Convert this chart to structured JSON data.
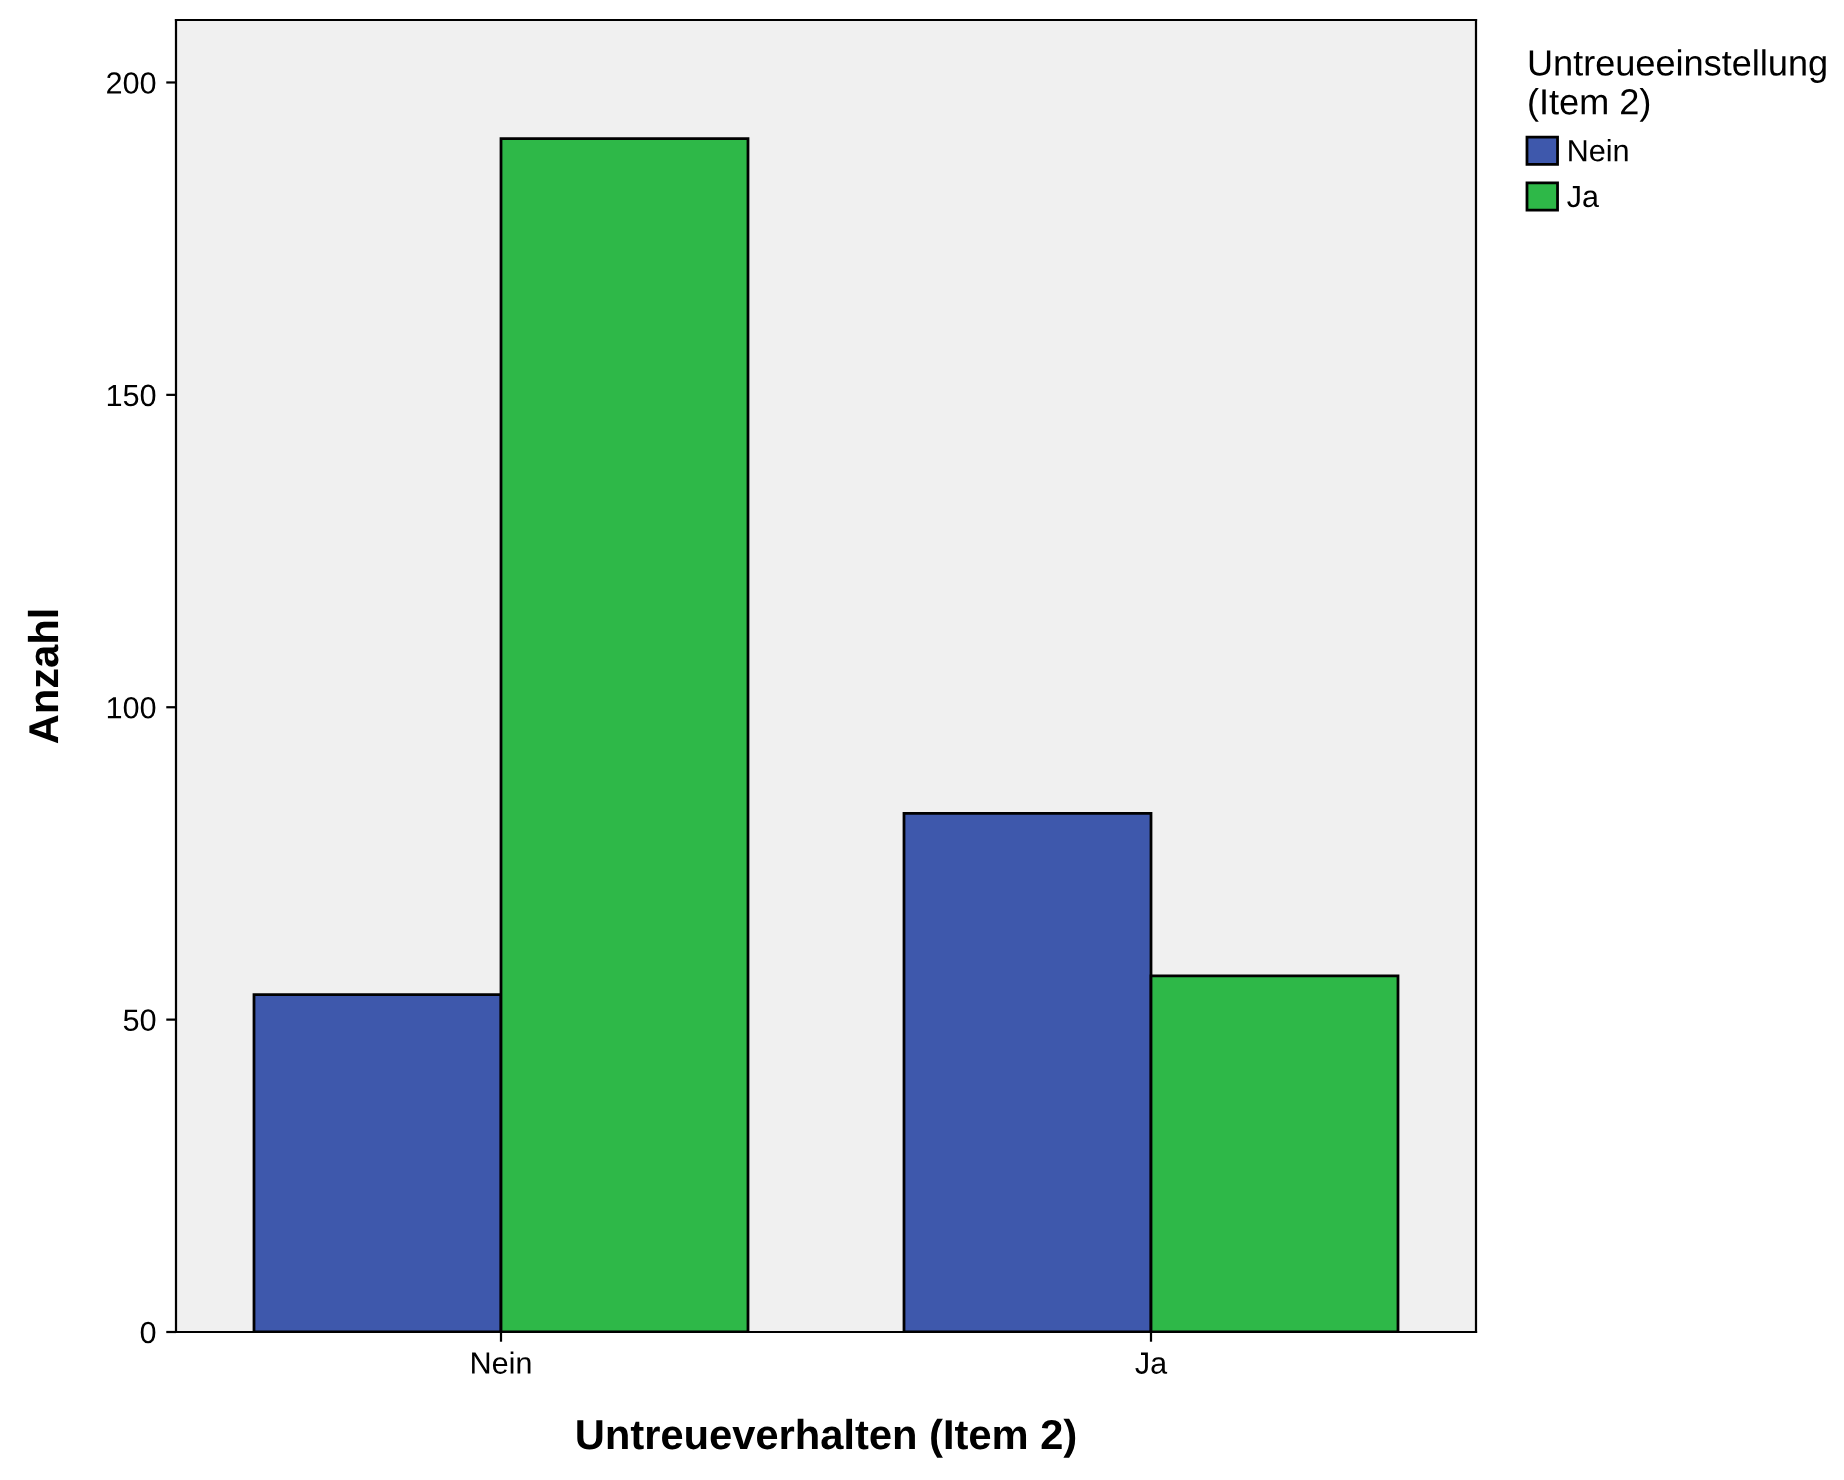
{
  "chart_data": {
    "type": "bar",
    "xlabel": "Untreueverhalten (Item 2)",
    "ylabel": "Anzahl",
    "legend_title": "Untreueeinstellung\n(Item 2)",
    "categories": [
      "Nein",
      "Ja"
    ],
    "series": [
      {
        "name": "Nein",
        "color": "#3e58ac",
        "values": [
          54,
          83
        ]
      },
      {
        "name": "Ja",
        "color": "#2eb848",
        "values": [
          191,
          57
        ]
      }
    ],
    "ylim": [
      0,
      210
    ],
    "yticks": [
      0,
      50,
      100,
      150,
      200
    ],
    "grid": false,
    "legend": "top right"
  }
}
